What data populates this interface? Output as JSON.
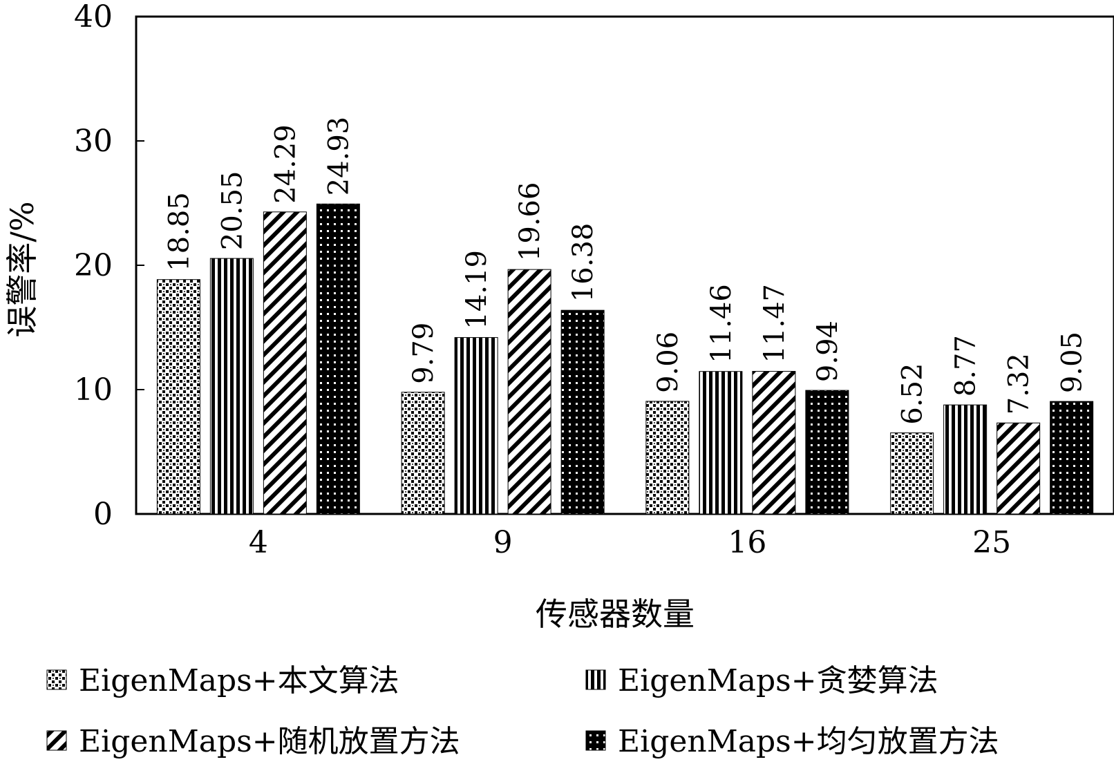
{
  "chart_data": {
    "type": "bar",
    "categories": [
      "4",
      "9",
      "16",
      "25"
    ],
    "series": [
      {
        "name": "EigenMaps+本文算法",
        "pattern": "dots",
        "values": [
          18.85,
          9.79,
          9.06,
          6.52
        ],
        "labels": [
          "18.85",
          "9.79",
          "9.06",
          "6.52"
        ]
      },
      {
        "name": "EigenMaps+贪婪算法",
        "pattern": "vertical-stripes",
        "values": [
          20.55,
          14.19,
          11.46,
          8.77
        ],
        "labels": [
          "20.55",
          "14.19",
          "11.46",
          "8.77"
        ]
      },
      {
        "name": "EigenMaps+随机放置方法",
        "pattern": "diagonal-stripes",
        "values": [
          24.29,
          19.66,
          11.47,
          7.32
        ],
        "labels": [
          "24.29",
          "19.66",
          "11.47",
          "7.32"
        ]
      },
      {
        "name": "EigenMaps+均匀放置方法",
        "pattern": "dense-dark",
        "values": [
          24.93,
          16.38,
          9.94,
          9.05
        ],
        "labels": [
          "24.93",
          "16.38",
          "9.94",
          "9.05"
        ]
      }
    ],
    "xlabel": "传感器数量",
    "ylabel": "误警率/%",
    "ylim": [
      0,
      40
    ],
    "yticks": [
      "0",
      "10",
      "20",
      "30",
      "40"
    ],
    "grid": false,
    "legend_position": "bottom"
  },
  "colors": {
    "bar_fill": "#000000",
    "background": "#ffffff",
    "axis": "#000000"
  }
}
